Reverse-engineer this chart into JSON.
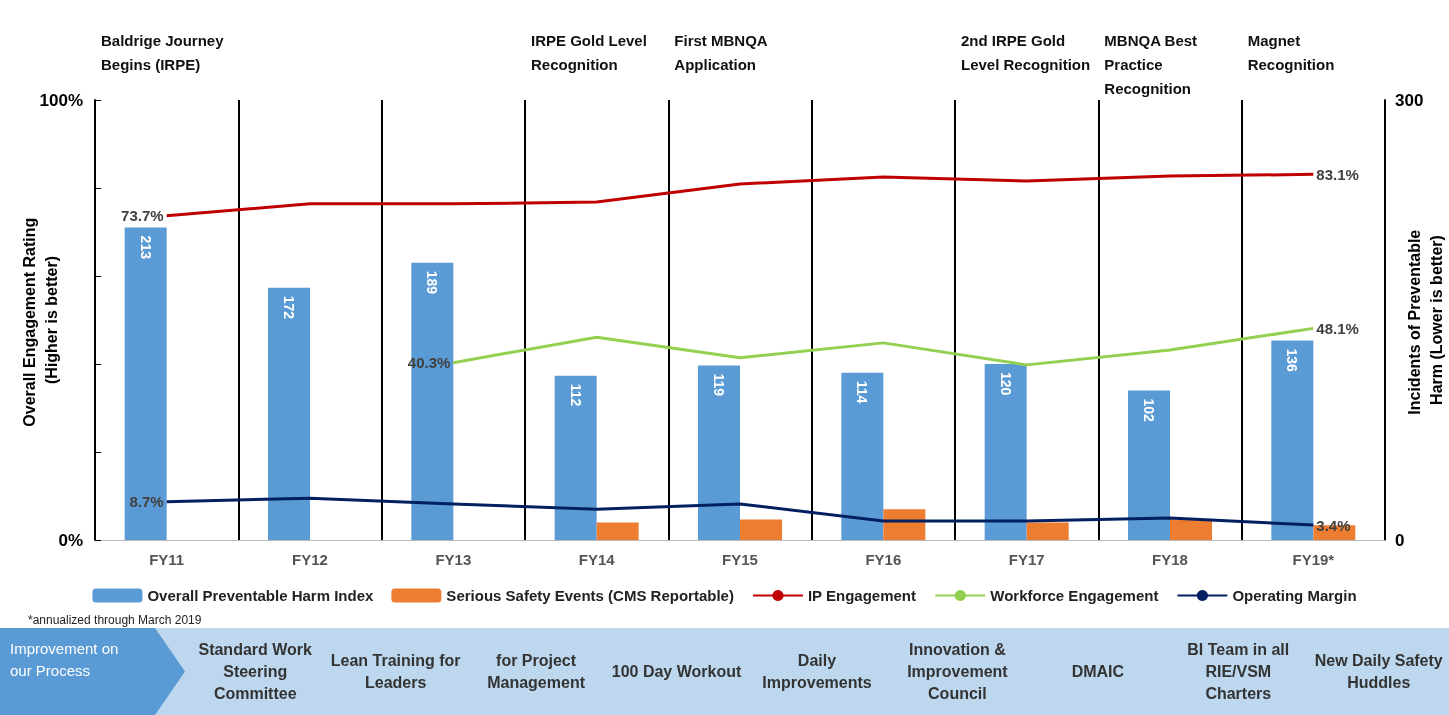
{
  "chart_data": {
    "type": "bar",
    "categories": [
      "FY11",
      "FY12",
      "FY13",
      "FY14",
      "FY15",
      "FY16",
      "FY17",
      "FY18",
      "FY19*"
    ],
    "series": [
      {
        "name": "Overall Preventable Harm Index",
        "type": "bar",
        "axis": "y2",
        "color": "#5b9bd5",
        "values": [
          213,
          172,
          189,
          112,
          119,
          114,
          120,
          102,
          136
        ],
        "value_labels": [
          "213",
          "172",
          "189",
          "112",
          "119",
          "114",
          "120",
          "102",
          "136"
        ]
      },
      {
        "name": "Serious Safety Events (CMS Reportable)",
        "type": "bar",
        "axis": "y2",
        "color": "#ed7d31",
        "values": [
          null,
          null,
          null,
          12,
          14,
          21,
          12,
          14,
          10
        ]
      },
      {
        "name": "IP Engagement",
        "type": "line",
        "color": "#c00000",
        "values": [
          73.7,
          76.4,
          76.4,
          76.8,
          80.9,
          82.5,
          81.6,
          82.7,
          83.1
        ],
        "value_labels": [
          "73.7%",
          null,
          null,
          null,
          null,
          null,
          null,
          null,
          "83.1%"
        ]
      },
      {
        "name": "Workforce Engagement",
        "type": "line",
        "color": "#92d050",
        "values": [
          null,
          null,
          40.3,
          46.1,
          41.4,
          44.8,
          39.8,
          43.2,
          48.1
        ],
        "value_labels": [
          null,
          null,
          "40.3%",
          null,
          null,
          null,
          null,
          null,
          "48.1%"
        ]
      },
      {
        "name": "Operating Margin",
        "type": "line",
        "color": "#002060",
        "values": [
          8.7,
          9.5,
          8.2,
          7.0,
          8.2,
          4.3,
          4.3,
          5.0,
          3.4
        ],
        "value_labels": [
          "8.7%",
          null,
          null,
          null,
          null,
          null,
          null,
          null,
          "3.4%"
        ]
      }
    ],
    "ylabel": "Overall Engagement Rating (Higher is better)",
    "y2label": "Incidents of Preventable Harm (Lower is better)",
    "ylim": [
      0,
      100
    ],
    "yticks": [
      {
        "value": 0,
        "label": "0%"
      },
      {
        "value": 20,
        "label": null
      },
      {
        "value": 40,
        "label": null
      },
      {
        "value": 60,
        "label": null
      },
      {
        "value": 80,
        "label": null
      },
      {
        "value": 100,
        "label": "100%"
      }
    ],
    "y2lim": [
      0,
      300
    ],
    "y2ticks": [
      0,
      300
    ],
    "grid": "x",
    "legend": "bottom",
    "marker": "none",
    "annotations": [
      "Baldrige Journey Begins (IRPE)",
      "IRPE Gold Level Recognition",
      "First MBNQA Application",
      "2nd IRPE Gold Level Recognition",
      "MBNQA Best Practice Recognition",
      "Magnet Recognition",
      "*annualized through March 2019",
      "Improvement on our Process",
      "Standard Work Steering Committee",
      "Lean Training for Leaders",
      "for Project Management",
      "100 Day Workout",
      "Daily Improvements",
      "Innovation & Improvement Council",
      "DMAIC",
      "BI Team in all RIE/VSM Charters",
      "New Daily Safety Huddles"
    ]
  }
}
